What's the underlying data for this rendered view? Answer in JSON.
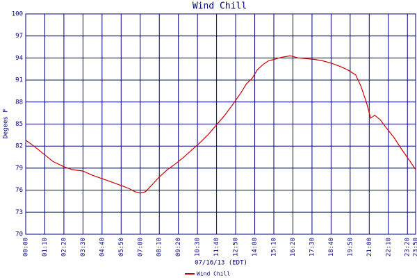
{
  "chart_data": {
    "type": "line",
    "title": "Wind Chill",
    "x_label": "07/16/13 (EDT)",
    "y_label": "Degees F",
    "x": [
      0,
      30,
      60,
      100,
      140,
      170,
      210,
      240,
      270,
      300,
      330,
      360,
      380,
      400,
      420,
      440,
      460,
      490,
      520,
      550,
      580,
      610,
      640,
      670,
      700,
      730,
      760,
      790,
      810,
      830,
      850,
      870,
      890,
      910,
      940,
      970,
      1000,
      1030,
      1060,
      1090,
      1120,
      1150,
      1180,
      1210,
      1230,
      1250,
      1265,
      1280,
      1300,
      1320,
      1350,
      1380,
      1410,
      1430
    ],
    "series": [
      {
        "name": "Wind Chill",
        "color": "#cc0000",
        "values": [
          82.8,
          82.0,
          81.1,
          79.9,
          79.2,
          78.8,
          78.6,
          78.1,
          77.7,
          77.3,
          76.9,
          76.5,
          76.2,
          75.8,
          75.6,
          75.8,
          76.6,
          77.8,
          78.8,
          79.6,
          80.5,
          81.5,
          82.5,
          83.6,
          84.9,
          86.2,
          87.7,
          89.3,
          90.5,
          91.2,
          92.4,
          93.1,
          93.6,
          93.8,
          94.1,
          94.3,
          94.0,
          93.9,
          93.8,
          93.6,
          93.3,
          92.9,
          92.4,
          91.7,
          90.1,
          87.9,
          85.8,
          86.2,
          85.6,
          84.6,
          83.2,
          81.5,
          79.9,
          78.8
        ]
      }
    ],
    "xlim": [
      0,
      1430
    ],
    "xticks": [
      {
        "value": 0,
        "label": "00:00"
      },
      {
        "value": 70,
        "label": "01:10"
      },
      {
        "value": 140,
        "label": "02:20"
      },
      {
        "value": 210,
        "label": "03:30"
      },
      {
        "value": 280,
        "label": "04:40"
      },
      {
        "value": 350,
        "label": "05:50"
      },
      {
        "value": 420,
        "label": "07:00"
      },
      {
        "value": 490,
        "label": "08:10"
      },
      {
        "value": 560,
        "label": "09:20"
      },
      {
        "value": 630,
        "label": "10:30"
      },
      {
        "value": 700,
        "label": "11:40"
      },
      {
        "value": 770,
        "label": "12:50"
      },
      {
        "value": 840,
        "label": "14:00"
      },
      {
        "value": 910,
        "label": "15:10"
      },
      {
        "value": 980,
        "label": "16:20"
      },
      {
        "value": 1050,
        "label": "17:30"
      },
      {
        "value": 1120,
        "label": "18:40"
      },
      {
        "value": 1190,
        "label": "19:50"
      },
      {
        "value": 1260,
        "label": "21:00"
      },
      {
        "value": 1330,
        "label": "22:10"
      },
      {
        "value": 1400,
        "label": "23:20"
      },
      {
        "value": 1430,
        "label": "23:50"
      }
    ],
    "ylim": [
      70,
      100
    ],
    "yticks": [
      70,
      73,
      76,
      79,
      82,
      85,
      88,
      91,
      94,
      97,
      100
    ],
    "grid": true
  }
}
